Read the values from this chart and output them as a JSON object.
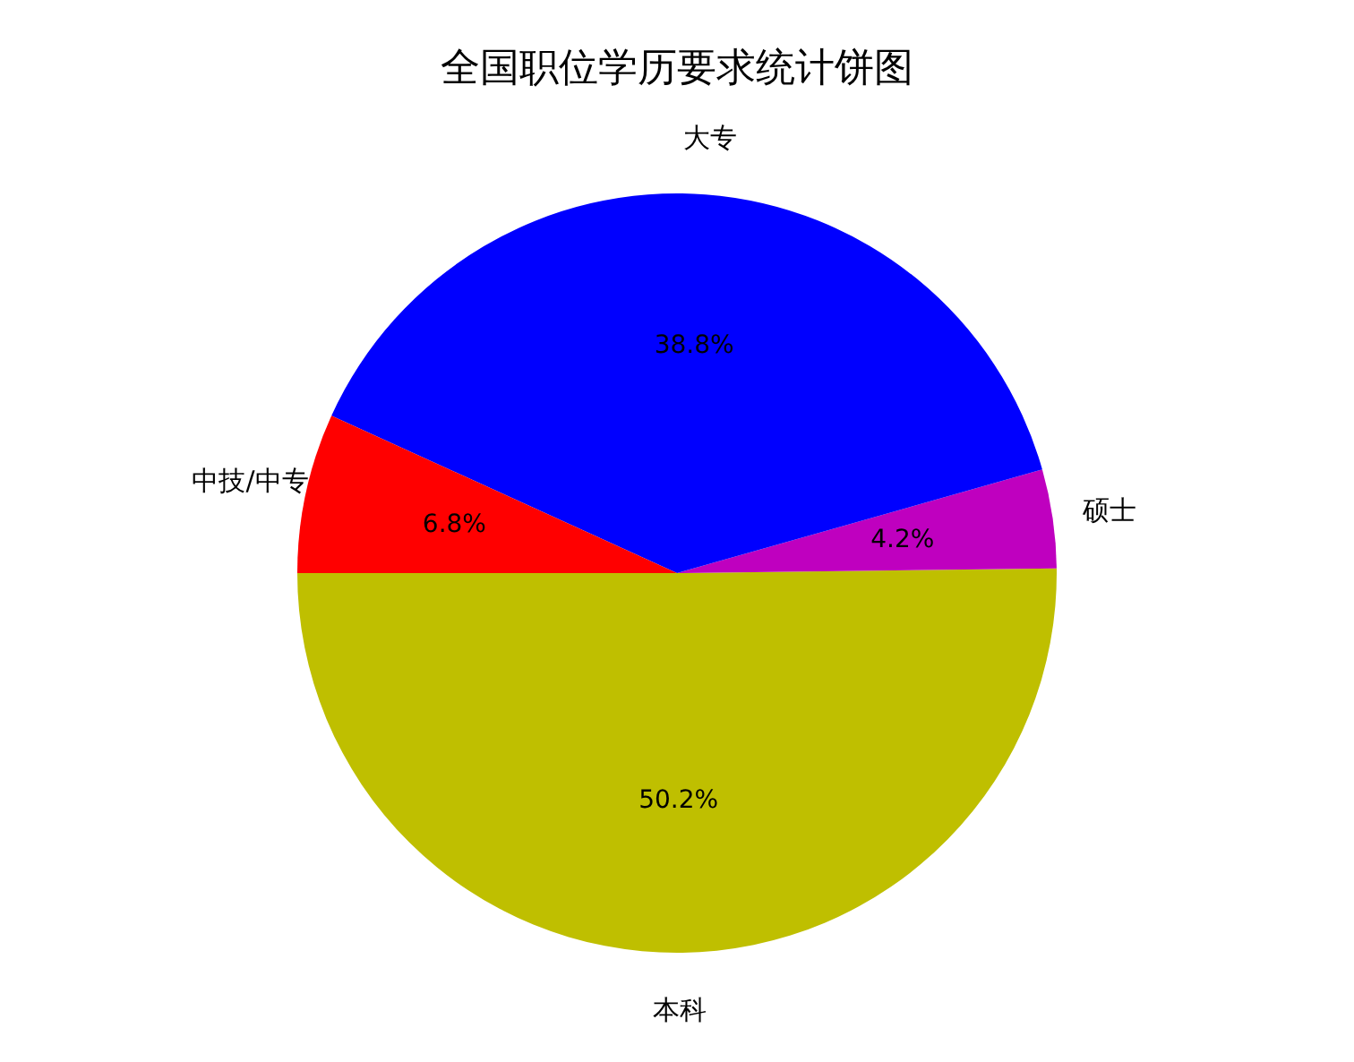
{
  "chart_data": {
    "type": "pie",
    "title": "全国职位学历要求统计饼图",
    "categories": [
      "本科",
      "硕士",
      "大专",
      "中技/中专"
    ],
    "values": [
      50.2,
      4.2,
      38.8,
      6.8
    ],
    "value_labels": [
      "50.2%",
      "4.2%",
      "38.8%",
      "6.8%"
    ],
    "colors": [
      "#bfbf00",
      "#bf00bf",
      "#0000ff",
      "#ff0000"
    ],
    "legend": false
  }
}
